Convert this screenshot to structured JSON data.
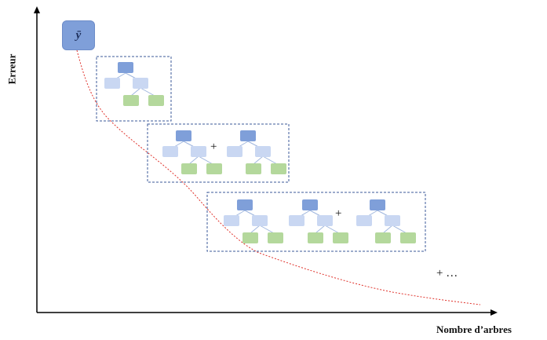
{
  "ylabel": "Erreur",
  "xlabel": "Nombre d’arbres",
  "start_symbol": "ȳ",
  "plus_symbol": "+",
  "ellipsis_label": "+ …",
  "colors": {
    "root": "#7f9fd9",
    "internal": "#c9d7f2",
    "leaf": "#b4d89c",
    "curve": "#e0342d",
    "box_border": "#3b5a9a"
  },
  "stages": [
    {
      "trees": 1
    },
    {
      "trees": 2
    },
    {
      "trees": 3
    }
  ]
}
